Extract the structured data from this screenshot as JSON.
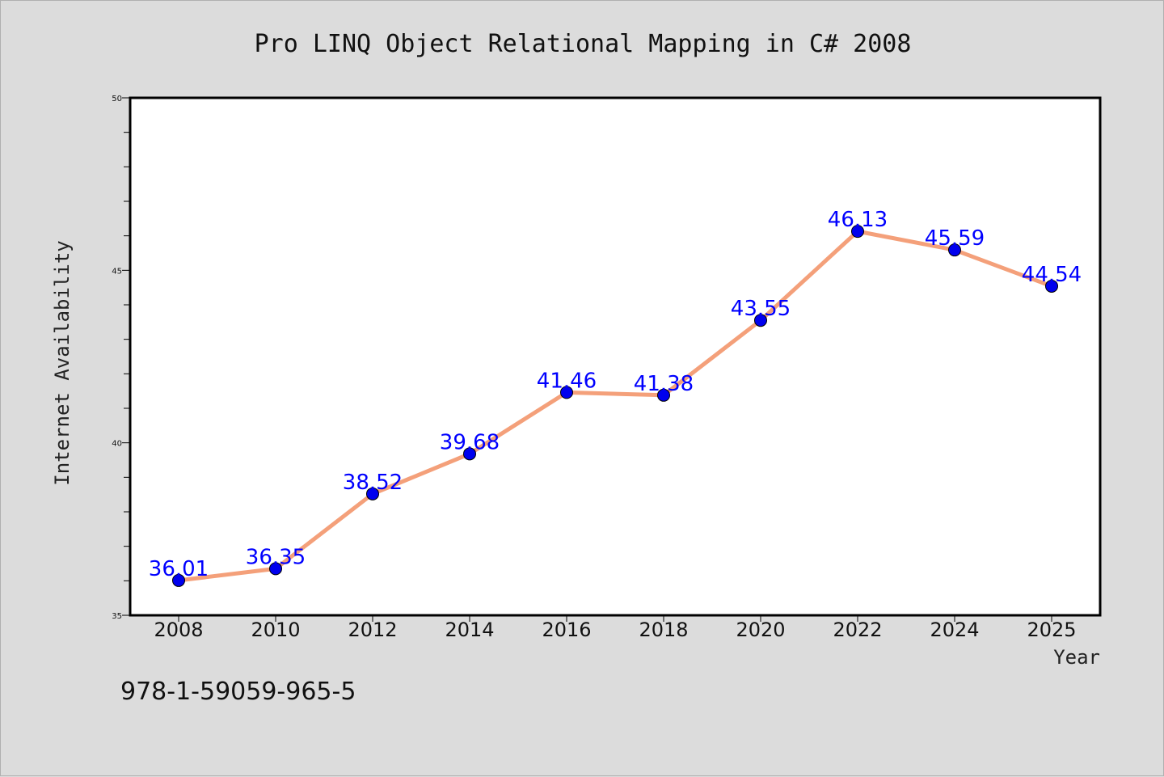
{
  "chart_data": {
    "type": "line",
    "title": "Pro LINQ Object Relational Mapping in C# 2008",
    "xlabel": "Year",
    "ylabel": "Internet Availability",
    "categories": [
      "2008",
      "2010",
      "2012",
      "2014",
      "2016",
      "2018",
      "2020",
      "2022",
      "2024",
      "2025"
    ],
    "series": [
      {
        "values": [
          36.01,
          36.35,
          38.52,
          39.68,
          41.46,
          41.38,
          43.55,
          46.13,
          45.59,
          44.54
        ],
        "line_color": "#f4a07a",
        "marker_color": "#0000ee"
      }
    ],
    "ylim": [
      35,
      50
    ],
    "yticks": [
      "35",
      "40",
      "45",
      "50"
    ],
    "data_labels": [
      "36.01",
      "36.35",
      "38.52",
      "39.68",
      "41.46",
      "41.38",
      "43.55",
      "46.13",
      "45.59",
      "44.54"
    ],
    "grid": false,
    "legend": "none",
    "footer": "978-1-59059-965-5"
  }
}
